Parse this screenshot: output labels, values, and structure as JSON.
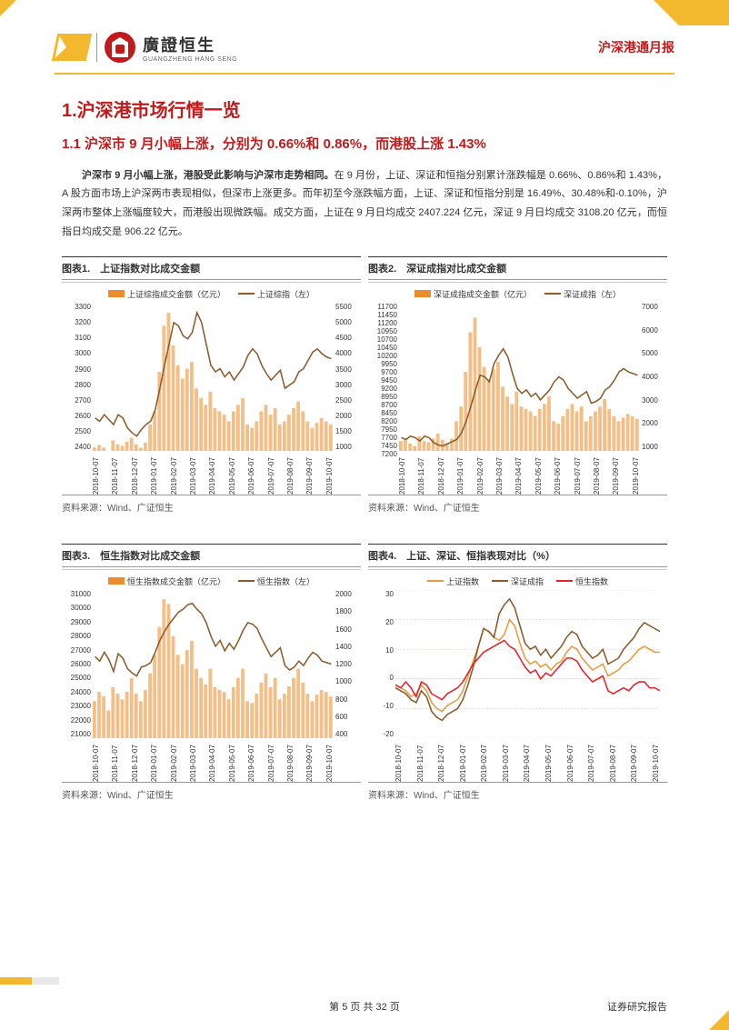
{
  "header": {
    "logo_cn": "廣證恒生",
    "logo_en": "GUANGZHENG HANG SENG",
    "right": "沪深港通月报"
  },
  "section": {
    "h1": "1.沪深港市场行情一览",
    "h2": "1.1 沪深市 9 月小幅上涨，分别为 0.66%和 0.86%，而港股上涨 1.43%",
    "p1_bold": "沪深市 9 月小幅上涨，港股受此影响与沪深市走势相同。",
    "p1_rest": "在 9 月份，上证、深证和恒指分别累计涨跌幅是 0.66%、0.86%和 1.43%，A 股方面市场上沪深两市表现相似，但深市上涨更多。而年初至今涨跌幅方面，上证、深证和恒指分别是 16.49%、30.48%和-0.10%，沪深两市整体上涨幅度较大，而港股出现微跌幅。成交方面，上证在 9 月日均成交 2407.224 亿元，深证 9 月日均成交 3108.20 亿元，而恒指日均成交是 906.22 亿元。"
  },
  "charts": {
    "source": "资料来源：Wind、广证恒生",
    "xticks": [
      "2018-10-07",
      "2018-11-07",
      "2018-12-07",
      "2019-01-07",
      "2019-02-07",
      "2019-03-07",
      "2019-04-07",
      "2019-05-07",
      "2019-06-07",
      "2019-07-07",
      "2019-08-07",
      "2019-09-07",
      "2019-10-07"
    ],
    "c1": {
      "title": "图表1.　上证指数对比成交金额",
      "leg_bar": "上证综指成交金额（亿元）",
      "leg_line": "上证综指（左）",
      "yl": [
        "3300",
        "3200",
        "3100",
        "3000",
        "2900",
        "2800",
        "2700",
        "2600",
        "2500",
        "2400"
      ],
      "yr": [
        "5500",
        "5000",
        "4500",
        "4000",
        "3500",
        "3000",
        "2500",
        "2000",
        "1500",
        "1000"
      ],
      "yl_min": 2400,
      "yl_max": 3300,
      "yr_min": 1000,
      "yr_max": 5500,
      "bar_color": "#f0a85e",
      "line_color": "#8b5a2b",
      "line_width": 1.5,
      "bars": [
        1100,
        1180,
        1100,
        950,
        1320,
        1200,
        1150,
        1280,
        1400,
        1200,
        1100,
        1250,
        1800,
        2200,
        3400,
        4800,
        5200,
        4200,
        3600,
        3200,
        3500,
        3700,
        2900,
        2600,
        2400,
        2800,
        2300,
        2200,
        2100,
        1900,
        2200,
        2400,
        2600,
        1800,
        1700,
        1900,
        2200,
        2400,
        2100,
        2300,
        1800,
        1900,
        2100,
        2300,
        2500,
        2200,
        1900,
        1700,
        1850,
        2000,
        1900,
        1800
      ],
      "line": [
        2600,
        2580,
        2620,
        2590,
        2560,
        2620,
        2600,
        2540,
        2510,
        2490,
        2530,
        2560,
        2580,
        2650,
        2780,
        2920,
        3050,
        3180,
        3160,
        3100,
        3080,
        3120,
        3240,
        3180,
        3050,
        2920,
        2880,
        2900,
        2850,
        2880,
        2830,
        2870,
        2910,
        2980,
        3020,
        2990,
        2920,
        2870,
        2830,
        2860,
        2890,
        2780,
        2800,
        2820,
        2880,
        2900,
        2950,
        3000,
        3020,
        2990,
        2970,
        2960
      ]
    },
    "c2": {
      "title": "图表2.　深证成指对比成交金额",
      "leg_bar": "深证成指成交金额（亿元）",
      "leg_line": "深证成指（左）",
      "yl": [
        "11700",
        "11450",
        "11200",
        "10950",
        "10700",
        "10450",
        "10200",
        "9950",
        "9700",
        "9450",
        "9200",
        "8950",
        "8700",
        "8450",
        "8200",
        "7950",
        "7700",
        "7450",
        "7200"
      ],
      "yr": [
        "7000",
        "6000",
        "5000",
        "4000",
        "3000",
        "2000",
        "1000"
      ],
      "yl_min": 7200,
      "yl_max": 11700,
      "yr_min": 1000,
      "yr_max": 7000,
      "bar_color": "#f0a85e",
      "line_color": "#8b5a2b",
      "line_width": 1.5,
      "bars": [
        1400,
        1500,
        1300,
        1200,
        1600,
        1400,
        1350,
        1500,
        1700,
        1450,
        1300,
        1500,
        2200,
        2800,
        4200,
        5800,
        6400,
        5200,
        4400,
        3900,
        4300,
        4600,
        3600,
        3200,
        2900,
        3400,
        2800,
        2700,
        2600,
        2400,
        2700,
        2900,
        3200,
        2200,
        2100,
        2400,
        2700,
        2900,
        2600,
        2800,
        2200,
        2400,
        2600,
        2800,
        3100,
        2700,
        2400,
        2200,
        2350,
        2500,
        2400,
        2300
      ],
      "line": [
        7600,
        7550,
        7650,
        7600,
        7500,
        7650,
        7600,
        7450,
        7380,
        7350,
        7420,
        7480,
        7550,
        7750,
        8100,
        8550,
        9050,
        9500,
        9450,
        9300,
        9850,
        10100,
        10300,
        10050,
        9550,
        9100,
        8950,
        9050,
        8850,
        8950,
        8750,
        8900,
        9050,
        9300,
        9450,
        9350,
        9100,
        8950,
        8800,
        8900,
        9000,
        8650,
        8700,
        8800,
        9050,
        9150,
        9350,
        9600,
        9700,
        9600,
        9550,
        9500
      ]
    },
    "c3": {
      "title": "图表3.　恒生指数对比成交金额",
      "leg_bar": "恒生指数成交金额（亿元）",
      "leg_line": "恒生指数（左）",
      "yl": [
        "31000",
        "30000",
        "29000",
        "28000",
        "27000",
        "26000",
        "25000",
        "24000",
        "23000",
        "22000",
        "21000"
      ],
      "yr": [
        "2000",
        "1800",
        "1600",
        "1400",
        "1200",
        "1000",
        "800",
        "600",
        "400"
      ],
      "yl_min": 21000,
      "yl_max": 31000,
      "yr_min": 400,
      "yr_max": 2000,
      "bar_color": "#f0a85e",
      "line_color": "#8b5a2b",
      "line_width": 1.5,
      "bars": [
        800,
        900,
        850,
        700,
        950,
        880,
        820,
        900,
        1050,
        880,
        800,
        920,
        1100,
        1300,
        1600,
        1900,
        1850,
        1500,
        1300,
        1200,
        1350,
        1450,
        1150,
        1050,
        980,
        1150,
        950,
        920,
        900,
        820,
        950,
        1050,
        1150,
        800,
        780,
        880,
        1000,
        1100,
        950,
        1050,
        820,
        880,
        960,
        1050,
        1150,
        1000,
        880,
        800,
        870,
        920,
        900,
        850
      ],
      "line": [
        26500,
        26200,
        26800,
        26300,
        25500,
        26700,
        26400,
        25700,
        25400,
        25200,
        25800,
        25900,
        26100,
        26800,
        27600,
        28200,
        28700,
        29100,
        29500,
        29700,
        30000,
        30100,
        29700,
        29400,
        28800,
        27900,
        27200,
        27600,
        26900,
        27400,
        27000,
        27600,
        28300,
        28800,
        28700,
        28400,
        27700,
        27100,
        26500,
        26800,
        27100,
        25900,
        25600,
        25800,
        26200,
        25900,
        26400,
        26800,
        26600,
        26200,
        26100,
        26000
      ]
    },
    "c4": {
      "title": "图表4.　上证、深证、恒指表现对比（%）",
      "leg1": "上证指数",
      "leg2": "深证成指",
      "leg3": "恒生指数",
      "yl": [
        "30",
        "20",
        "10",
        "0",
        "-10",
        "-20"
      ],
      "yl_min": -20,
      "yl_max": 30,
      "color1": "#e89a3c",
      "color2": "#8b5a2b",
      "color3": "#e62129",
      "line_width": 1.5,
      "grid_color": "#d9d0c0",
      "s1": [
        -2,
        -3,
        -4,
        -6,
        -5,
        -2,
        -4,
        -8,
        -10,
        -11,
        -9,
        -8,
        -7,
        -4,
        1,
        6,
        11,
        17,
        16,
        14,
        13,
        15,
        20,
        18,
        12,
        7,
        5,
        6,
        4,
        5,
        3,
        5,
        6,
        9,
        11,
        10,
        7,
        5,
        3,
        4,
        5,
        1,
        2,
        3,
        5,
        6,
        8,
        10,
        11,
        10,
        9,
        9
      ],
      "s2": [
        -3,
        -4,
        -5,
        -7,
        -8,
        -4,
        -6,
        -11,
        -13,
        -14,
        -12,
        -11,
        -10,
        -7,
        -2,
        4,
        11,
        17,
        16,
        14,
        22,
        25,
        27,
        24,
        18,
        12,
        10,
        11,
        8,
        10,
        7,
        9,
        11,
        14,
        16,
        15,
        11,
        9,
        7,
        8,
        10,
        5,
        6,
        7,
        10,
        12,
        14,
        17,
        19,
        18,
        17,
        16
      ],
      "s3": [
        -2,
        -3,
        -1,
        -3,
        -6,
        -1,
        -2,
        -5,
        -6,
        -7,
        -5,
        -4,
        -3,
        -1,
        2,
        5,
        7,
        9,
        10,
        11,
        12,
        13,
        11,
        10,
        7,
        4,
        2,
        3,
        0,
        2,
        1,
        3,
        5,
        7,
        7,
        6,
        3,
        1,
        -1,
        0,
        1,
        -4,
        -5,
        -4,
        -3,
        -4,
        -2,
        -1,
        -1,
        -3,
        -3,
        -4
      ]
    }
  },
  "footer": {
    "page": "第 5 页 共 32 页",
    "right": "证券研究报告"
  }
}
